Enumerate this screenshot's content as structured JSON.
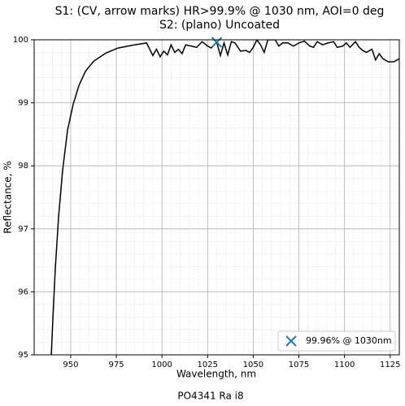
{
  "chart_data": {
    "type": "line",
    "title": "S1: (CV, arrow marks) HR>99.9% @ 1030 nm, AOI=0 deg",
    "subtitle": "S2: (plano) Uncoated",
    "xlabel": "Wavelength, nm",
    "ylabel": "Reflectance, %",
    "footer": "PO4341 Ra i8",
    "xlim": [
      930,
      1130
    ],
    "ylim": [
      95,
      100
    ],
    "xticks": [
      950,
      975,
      1000,
      1025,
      1050,
      1075,
      1100,
      1125
    ],
    "yticks": [
      95,
      96,
      97,
      98,
      99,
      100
    ],
    "xminorticks": [
      930,
      935,
      940,
      945,
      950,
      955,
      960,
      965,
      970,
      975,
      980,
      985,
      990,
      995,
      1000,
      1005,
      1010,
      1015,
      1020,
      1025,
      1030,
      1035,
      1040,
      1045,
      1050,
      1055,
      1060,
      1065,
      1070,
      1075,
      1080,
      1085,
      1090,
      1095,
      1100,
      1105,
      1110,
      1115,
      1120,
      1125,
      1130
    ],
    "yminorticks": [
      95.2,
      95.4,
      95.6,
      95.8,
      96.2,
      96.4,
      96.6,
      96.8,
      97.2,
      97.4,
      97.6,
      97.8,
      98.2,
      98.4,
      98.6,
      98.8,
      99.2,
      99.4,
      99.6,
      99.8
    ],
    "grid": true,
    "x": [
      939.4,
      940.3,
      941.6,
      943.4,
      945.6,
      948.3,
      951.4,
      954.6,
      958.1,
      962.6,
      969.3,
      976,
      985,
      991.6,
      995,
      997,
      999,
      1001,
      1003,
      1005,
      1007,
      1009,
      1011,
      1013,
      1016,
      1019,
      1022,
      1025,
      1027,
      1030,
      1032,
      1034,
      1036,
      1038,
      1040,
      1043,
      1046,
      1048,
      1050,
      1052,
      1054,
      1056,
      1058,
      1062,
      1064,
      1066,
      1069,
      1072,
      1075,
      1078,
      1081,
      1083,
      1085,
      1088,
      1091,
      1094,
      1096,
      1099,
      1101,
      1103,
      1106,
      1108,
      1110,
      1112,
      1115,
      1117,
      1119,
      1121,
      1124,
      1127,
      1130
    ],
    "series": [
      {
        "color": "#000000",
        "values": [
          95,
          95.6,
          96.38,
          97.2,
          97.93,
          98.57,
          98.98,
          99.28,
          99.5,
          99.66,
          99.79,
          99.87,
          99.92,
          99.95,
          99.75,
          99.85,
          99.73,
          99.82,
          99.76,
          99.92,
          99.8,
          99.85,
          99.78,
          99.92,
          99.9,
          99.88,
          99.97,
          99.9,
          99.87,
          99.96,
          99.75,
          99.95,
          99.76,
          99.97,
          99.95,
          99.82,
          99.83,
          99.8,
          99.88,
          100,
          99.92,
          99.8,
          100,
          100,
          99.9,
          99.95,
          99.95,
          99.9,
          99.95,
          99.98,
          99.9,
          99.88,
          99.97,
          99.92,
          99.95,
          99.97,
          99.88,
          99.9,
          99.95,
          99.88,
          99.97,
          99.88,
          99.83,
          99.8,
          99.85,
          99.68,
          99.78,
          99.7,
          99.65,
          99.65,
          99.7
        ]
      }
    ],
    "markers": [
      {
        "name": "99.96% @ 1030nm",
        "x": 1030,
        "y": 99.96,
        "color": "#1f77b4"
      }
    ],
    "legend": "lower right"
  }
}
